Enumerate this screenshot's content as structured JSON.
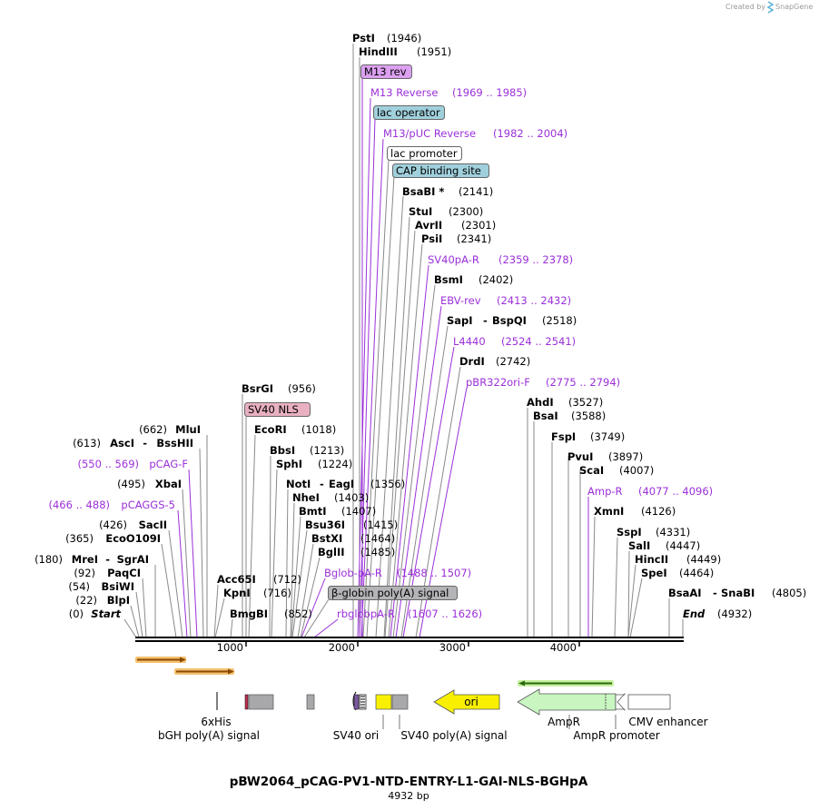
{
  "title": "pBW2064_pCAG-PV1-NTD-ENTRY-L1-GAI-NLS-BGHpA",
  "size": "4932 bp",
  "credit": "Created by",
  "credit_brand": "SnapGene",
  "colors": {
    "primer": "#9b30d9",
    "leader": "#8a8a8a",
    "feature_gray": "#a8a8aa",
    "ori": "#f8f000",
    "ampr": "#c8f5c0",
    "sv40nls": "#e8b0c0",
    "m13rev": "#dca0f0",
    "lac_operator": "#a0d0dc",
    "primer_arrow": "#f0a030",
    "orf_arrow": "#70c040"
  },
  "ticks": [
    "1000",
    "2000",
    "3000",
    "4000"
  ],
  "sites": [
    {
      "name": "PstI",
      "pos": "(1946)",
      "style": "enzyme"
    },
    {
      "name": "HindIII",
      "pos": "(1951)",
      "style": "enzyme"
    },
    {
      "name": "M13 rev",
      "pos": "",
      "style": "box-purple"
    },
    {
      "name": "M13 Reverse",
      "pos": "(1969 .. 1985)",
      "style": "primer"
    },
    {
      "name": "lac operator",
      "pos": "",
      "style": "box-teal"
    },
    {
      "name": "M13/pUC Reverse",
      "pos": "(1982 .. 2004)",
      "style": "primer"
    },
    {
      "name": "lac promoter",
      "pos": "",
      "style": "box-white"
    },
    {
      "name": "CAP binding site",
      "pos": "",
      "style": "box-teal"
    },
    {
      "name": "BsaBI *",
      "pos": "(2141)",
      "style": "enzyme"
    },
    {
      "name": "StuI",
      "pos": "(2300)",
      "style": "enzyme"
    },
    {
      "name": "AvrII",
      "pos": "(2301)",
      "style": "enzyme"
    },
    {
      "name": "PsiI",
      "pos": "(2341)",
      "style": "enzyme"
    },
    {
      "name": "SV40pA-R",
      "pos": "(2359 .. 2378)",
      "style": "primer"
    },
    {
      "name": "BsmI",
      "pos": "(2402)",
      "style": "enzyme"
    },
    {
      "name": "EBV-rev",
      "pos": "(2413 .. 2432)",
      "style": "primer"
    },
    {
      "name": "SapI",
      "pos": "(2518)",
      "style": "enzyme"
    },
    {
      "name": "BspQI",
      "pos": "",
      "style": "enzyme"
    },
    {
      "name": "L4440",
      "pos": "(2524 .. 2541)",
      "style": "primer"
    },
    {
      "name": "DrdI",
      "pos": "(2742)",
      "style": "enzyme"
    },
    {
      "name": "pBR322ori-F",
      "pos": "(2775 .. 2794)",
      "style": "primer"
    },
    {
      "name": "AhdI",
      "pos": "(3527)",
      "style": "enzyme"
    },
    {
      "name": "BsaI",
      "pos": "(3588)",
      "style": "enzyme"
    },
    {
      "name": "FspI",
      "pos": "(3749)",
      "style": "enzyme"
    },
    {
      "name": "PvuI",
      "pos": "(3897)",
      "style": "enzyme"
    },
    {
      "name": "ScaI",
      "pos": "(4007)",
      "style": "enzyme"
    },
    {
      "name": "Amp-R",
      "pos": "(4077 .. 4096)",
      "style": "primer"
    },
    {
      "name": "XmnI",
      "pos": "(4126)",
      "style": "enzyme"
    },
    {
      "name": "SspI",
      "pos": "(4331)",
      "style": "enzyme"
    },
    {
      "name": "SalI",
      "pos": "(4447)",
      "style": "enzyme"
    },
    {
      "name": "HincII",
      "pos": "(4449)",
      "style": "enzyme"
    },
    {
      "name": "SpeI",
      "pos": "(4464)",
      "style": "enzyme"
    },
    {
      "name": "BsaAI",
      "pos": "(4805)",
      "style": "enzyme"
    },
    {
      "name": "SnaBI",
      "pos": "",
      "style": "enzyme"
    },
    {
      "name": "End",
      "pos": "(4932)",
      "style": "terminal"
    },
    {
      "name": "BsrGI",
      "pos": "(956)",
      "style": "enzyme"
    },
    {
      "name": "SV40 NLS",
      "pos": "",
      "style": "box-pink"
    },
    {
      "name": "EcoRI",
      "pos": "(1018)",
      "style": "enzyme"
    },
    {
      "name": "BbsI",
      "pos": "(1213)",
      "style": "enzyme"
    },
    {
      "name": "SphI",
      "pos": "(1224)",
      "style": "enzyme"
    },
    {
      "name": "NotI",
      "pos": "(1356)",
      "style": "enzyme"
    },
    {
      "name": "EagI",
      "pos": "",
      "style": "enzyme"
    },
    {
      "name": "NheI",
      "pos": "(1403)",
      "style": "enzyme"
    },
    {
      "name": "BmtI",
      "pos": "(1407)",
      "style": "enzyme"
    },
    {
      "name": "Bsu36I",
      "pos": "(1415)",
      "style": "enzyme"
    },
    {
      "name": "BstXI",
      "pos": "(1464)",
      "style": "enzyme"
    },
    {
      "name": "BglII",
      "pos": "(1485)",
      "style": "enzyme"
    },
    {
      "name": "Bglob-pA-R",
      "pos": "(1488 .. 1507)",
      "style": "primer"
    },
    {
      "name": "β-globin poly(A) signal",
      "pos": "",
      "style": "box-gray"
    },
    {
      "name": "rbglobpA-R",
      "pos": "(1607 .. 1626)",
      "style": "primer"
    },
    {
      "name": "Acc65I",
      "pos": "(712)",
      "style": "enzyme"
    },
    {
      "name": "KpnI",
      "pos": "(716)",
      "style": "enzyme"
    },
    {
      "name": "BmgBI",
      "pos": "(852)",
      "style": "enzyme"
    },
    {
      "name": "MluI",
      "pos": "(662)",
      "style": "enzyme"
    },
    {
      "name": "AscI",
      "pos": "(613)",
      "style": "enzyme"
    },
    {
      "name": "BssHII",
      "pos": "",
      "style": "enzyme"
    },
    {
      "name": "pCAG-F",
      "pos": "(550 .. 569)",
      "style": "primer"
    },
    {
      "name": "XbaI",
      "pos": "(495)",
      "style": "enzyme"
    },
    {
      "name": "pCAGGS-5",
      "pos": "(466 .. 488)",
      "style": "primer"
    },
    {
      "name": "SacII",
      "pos": "(426)",
      "style": "enzyme"
    },
    {
      "name": "EcoO109I",
      "pos": "(365)",
      "style": "enzyme"
    },
    {
      "name": "MreI",
      "pos": "(180)",
      "style": "enzyme"
    },
    {
      "name": "SgrAI",
      "pos": "",
      "style": "enzyme"
    },
    {
      "name": "PaqCI",
      "pos": "(92)",
      "style": "enzyme"
    },
    {
      "name": "BsiWI",
      "pos": "(54)",
      "style": "enzyme"
    },
    {
      "name": "BlpI",
      "pos": "(22)",
      "style": "enzyme"
    },
    {
      "name": "Start",
      "pos": "(0)",
      "style": "terminal"
    }
  ],
  "features": [
    {
      "name": "6xHis"
    },
    {
      "name": "bGH poly(A) signal"
    },
    {
      "name": "SV40 ori"
    },
    {
      "name": "SV40 poly(A) signal"
    },
    {
      "name": "ori"
    },
    {
      "name": "AmpR"
    },
    {
      "name": "AmpR promoter"
    },
    {
      "name": "CMV enhancer"
    }
  ]
}
